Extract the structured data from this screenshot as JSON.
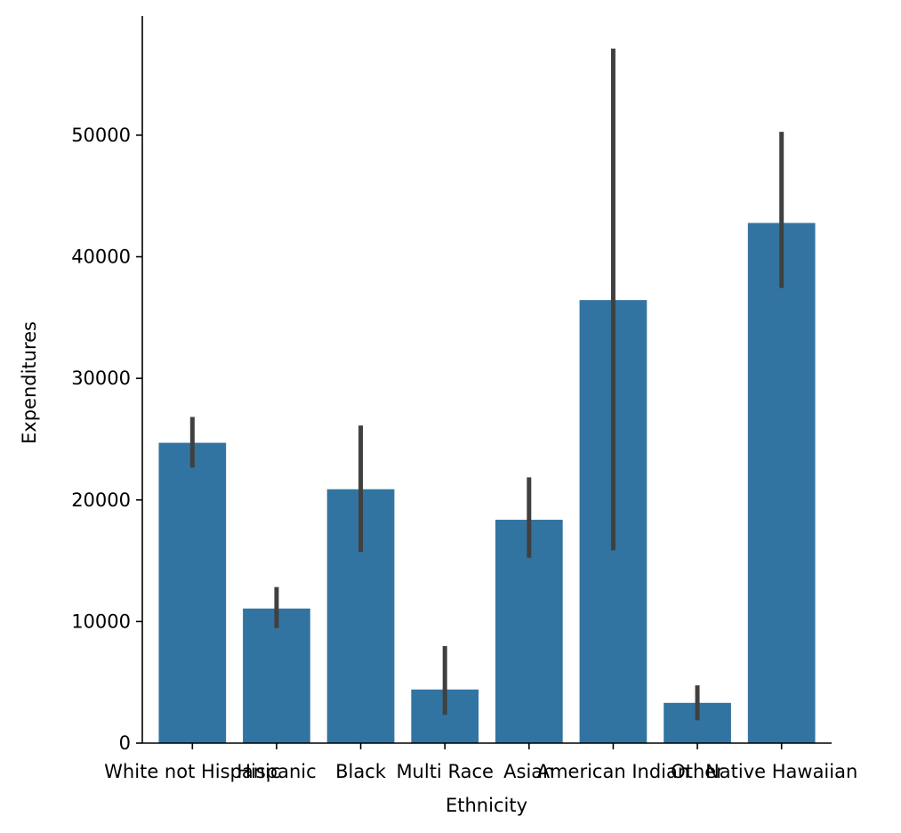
{
  "chart_data": {
    "type": "bar",
    "title": "",
    "xlabel": "Ethnicity",
    "ylabel": "Expenditures",
    "categories": [
      "White not Hispanic",
      "Hispanic",
      "Black",
      "Multi Race",
      "Asian",
      "American Indian",
      "Other",
      "Native Hawaiian"
    ],
    "values": [
      24700,
      11070,
      20880,
      4410,
      18370,
      36440,
      3310,
      42780
    ],
    "error_low": [
      22650,
      9460,
      15720,
      2320,
      15240,
      15860,
      1880,
      37430
    ],
    "error_high": [
      26830,
      12840,
      26120,
      7980,
      21860,
      57120,
      4750,
      50280
    ],
    "ylim": [
      0,
      59800
    ],
    "yticks": [
      0,
      10000,
      20000,
      30000,
      40000,
      50000
    ],
    "grid": false,
    "colors": {
      "bar": "#3274a1",
      "errorbar": "#404040",
      "axis": "#000000"
    }
  }
}
